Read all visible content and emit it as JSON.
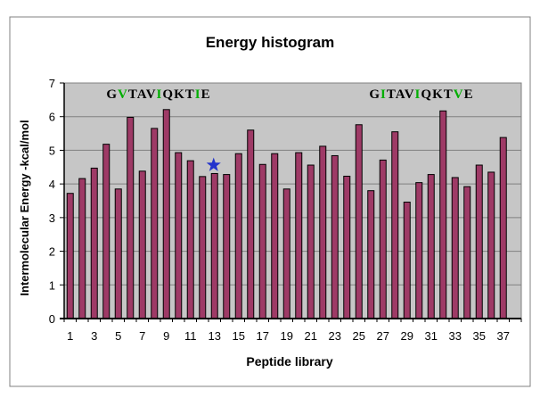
{
  "chart_data": {
    "type": "bar",
    "title": "Energy histogram",
    "xlabel": "Peptide library",
    "ylabel": "Intermolecular Energy -kcal/mol",
    "categories": [
      1,
      2,
      3,
      4,
      5,
      6,
      7,
      8,
      9,
      10,
      11,
      12,
      13,
      14,
      15,
      16,
      17,
      18,
      19,
      20,
      21,
      22,
      23,
      24,
      25,
      26,
      27,
      28,
      29,
      30,
      31,
      32,
      33,
      34,
      35,
      36,
      37
    ],
    "values": [
      3.72,
      4.16,
      4.47,
      5.18,
      3.85,
      5.98,
      4.38,
      5.65,
      6.21,
      4.93,
      4.69,
      4.22,
      4.31,
      4.28,
      4.9,
      5.6,
      4.58,
      4.9,
      3.85,
      4.93,
      4.56,
      5.12,
      4.84,
      4.23,
      5.76,
      3.8,
      4.71,
      5.55,
      3.46,
      4.04,
      4.28,
      6.17,
      4.19,
      3.92,
      4.56,
      4.35,
      5.38
    ],
    "ylim": [
      0,
      7
    ],
    "y_tick_labels": [
      "0",
      "1",
      "2",
      "3",
      "4",
      "5",
      "6",
      "7"
    ],
    "x_tick_labels_shown": [
      "1",
      "3",
      "5",
      "7",
      "9",
      "11",
      "13",
      "15",
      "17",
      "19",
      "21",
      "23",
      "25",
      "27",
      "29",
      "31",
      "33",
      "35",
      "37"
    ],
    "grid": "horizontal-on",
    "legend": "none",
    "annotations": [
      {
        "text": "GVTAVIQKTIE",
        "green_letter_indices": [
          1,
          5,
          9
        ],
        "near_category": 8
      },
      {
        "text": "GITAVIQKTVE",
        "green_letter_indices": [
          1,
          5,
          9
        ],
        "near_category": 30
      }
    ],
    "marker": {
      "shape": "star",
      "at_category": 13,
      "y_value": 4.56
    }
  },
  "colors": {
    "bar_fill": "#9E3A66",
    "bar_border": "#000000",
    "plot_background": "#C6C6C6",
    "gridline": "#808080",
    "axis": "#000000",
    "frame_border": "#808080",
    "star_blue": "#2233CC",
    "annotation_green": "#00AE00",
    "annotation_black": "#000000"
  }
}
